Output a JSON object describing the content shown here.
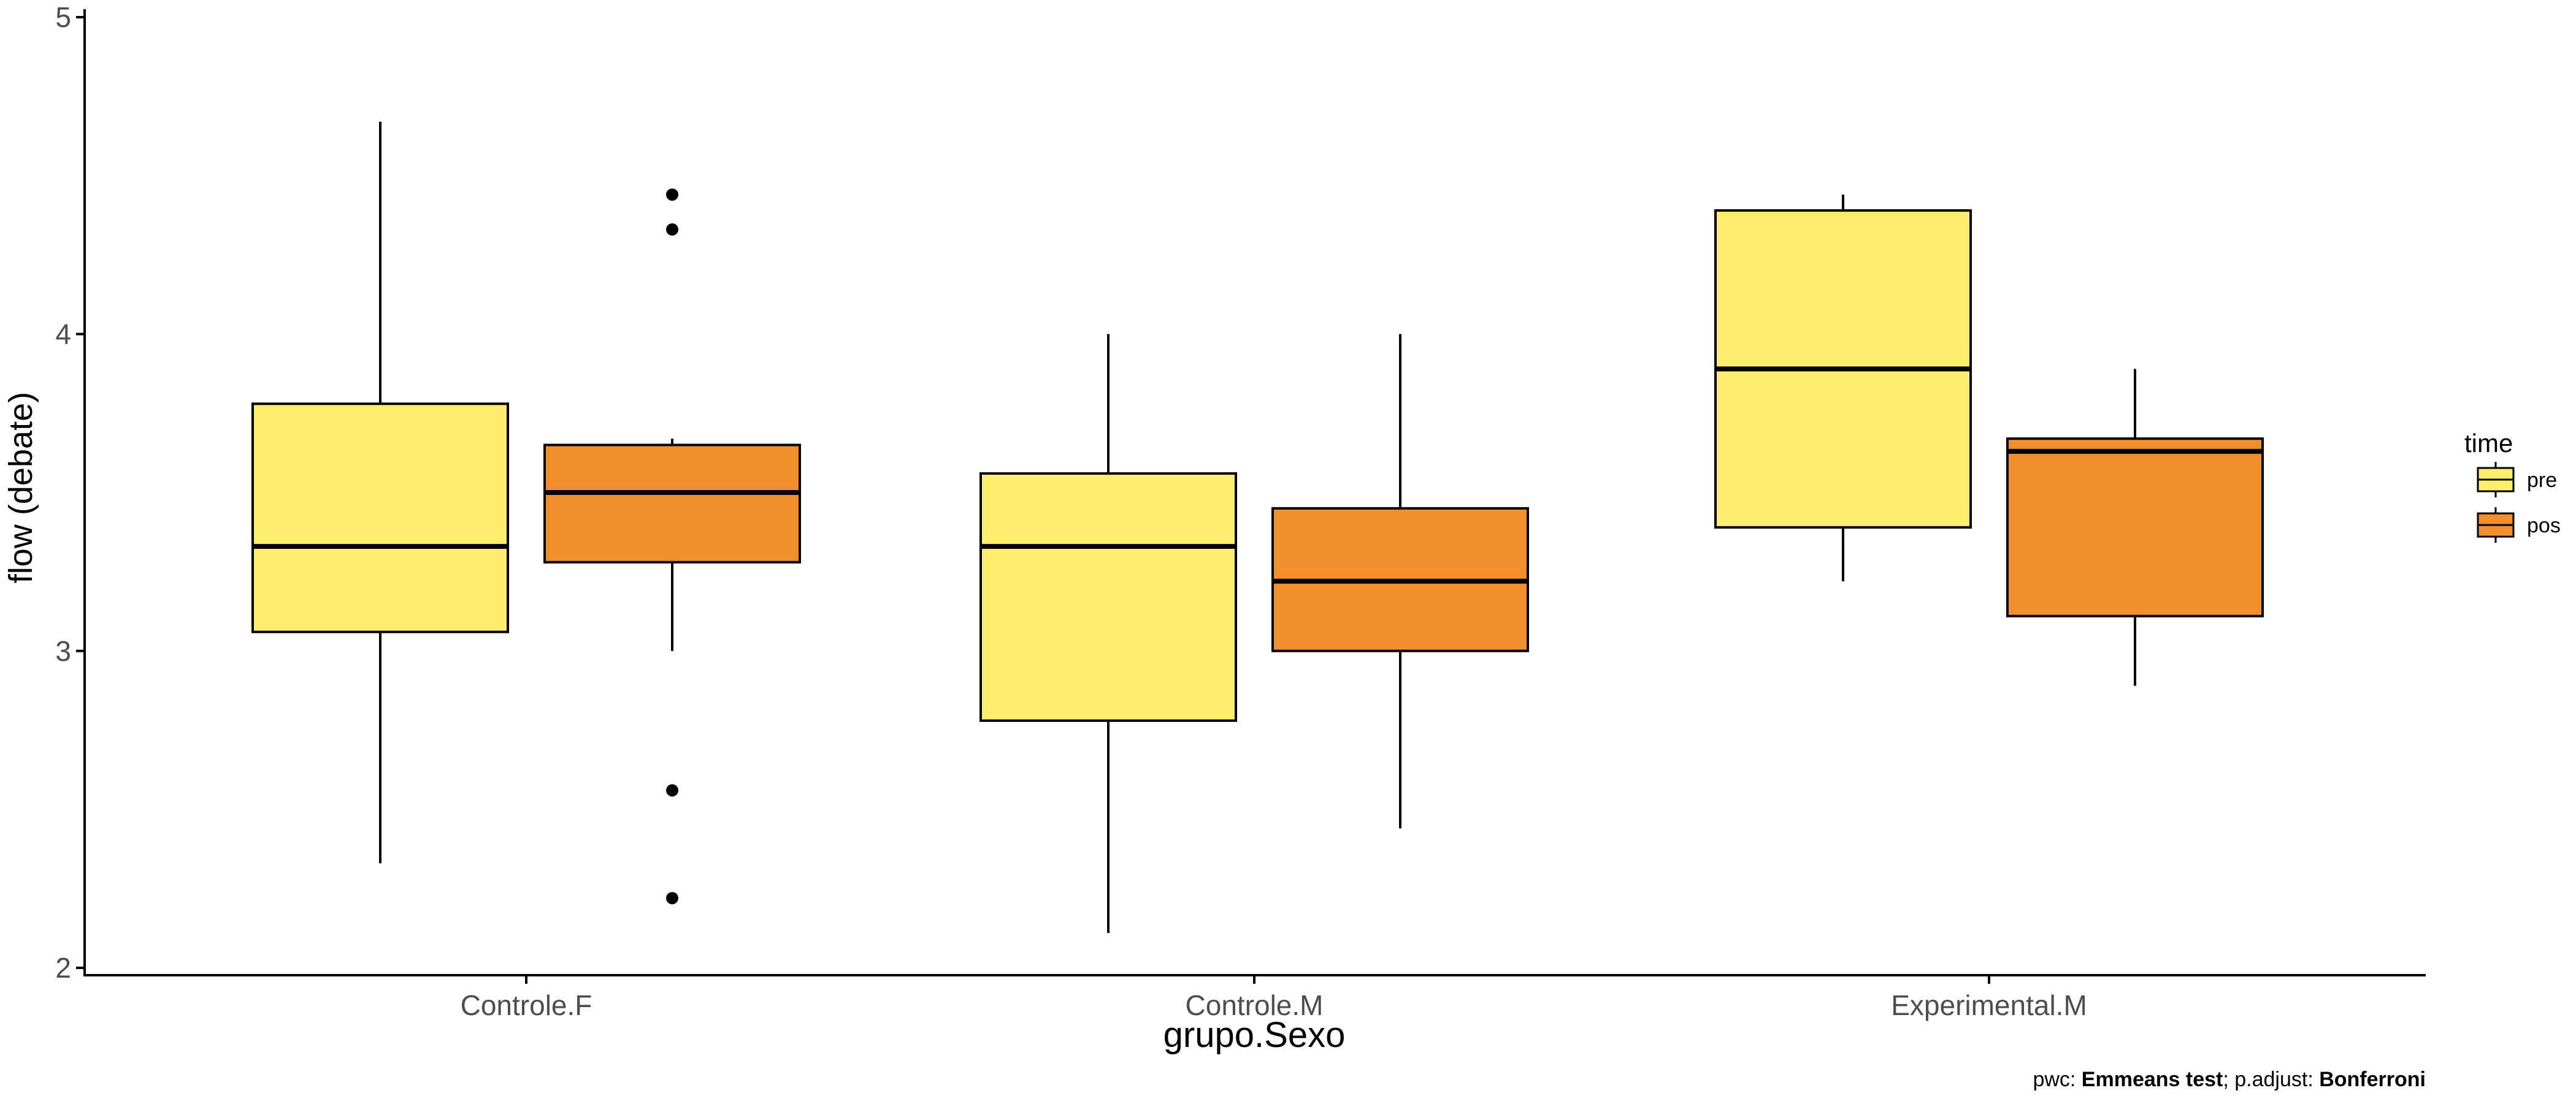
{
  "chart_data": {
    "type": "boxplot",
    "xlabel": "grupo.Sexo",
    "ylabel": "flow (debate)",
    "ylim": [
      1.97,
      5.02
    ],
    "yticks": [
      2,
      3,
      4,
      5
    ],
    "categories": [
      "Controle.F",
      "Controle.M",
      "Experimental.M"
    ],
    "legend": {
      "title": "time",
      "position": "right",
      "entries": [
        "pre",
        "pos"
      ]
    },
    "series": [
      {
        "name": "pre",
        "color": "#FFED6F",
        "boxes": [
          {
            "whisker_low": 2.33,
            "q1": 3.06,
            "median": 3.33,
            "q3": 3.78,
            "whisker_high": 4.67,
            "outliers": []
          },
          {
            "whisker_low": 2.11,
            "q1": 2.78,
            "median": 3.33,
            "q3": 3.56,
            "whisker_high": 4.0,
            "outliers": []
          },
          {
            "whisker_low": 3.22,
            "q1": 3.39,
            "median": 3.89,
            "q3": 4.39,
            "whisker_high": 4.44,
            "outliers": []
          }
        ]
      },
      {
        "name": "pos",
        "color": "#F28E2B",
        "boxes": [
          {
            "whisker_low": 3.0,
            "q1": 3.28,
            "median": 3.5,
            "q3": 3.65,
            "whisker_high": 3.67,
            "outliers": [
              4.44,
              4.33,
              2.56,
              2.22
            ]
          },
          {
            "whisker_low": 2.44,
            "q1": 3.0,
            "median": 3.22,
            "q3": 3.45,
            "whisker_high": 4.0,
            "outliers": []
          },
          {
            "whisker_low": 2.89,
            "q1": 3.11,
            "median": 3.63,
            "q3": 3.67,
            "whisker_high": 3.89,
            "outliers": []
          }
        ]
      }
    ],
    "caption": [
      {
        "text": "pwc: ",
        "bold": false
      },
      {
        "text": "Emmeans test",
        "bold": true
      },
      {
        "text": "; p.adjust: ",
        "bold": false
      },
      {
        "text": "Bonferroni",
        "bold": true
      }
    ]
  }
}
